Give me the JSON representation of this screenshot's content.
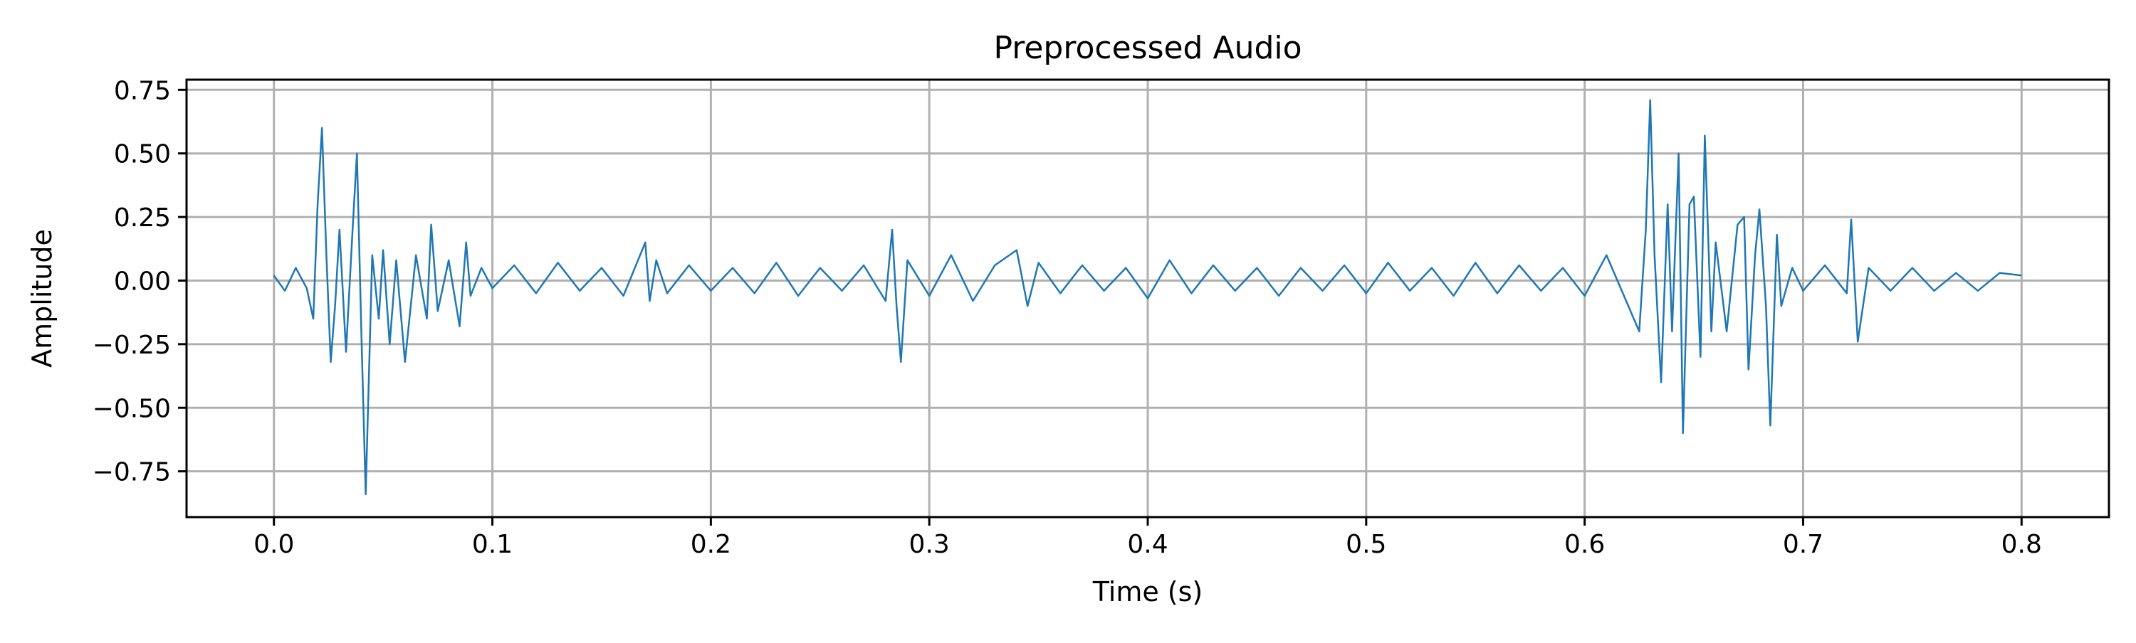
{
  "chart_data": {
    "type": "line",
    "title": "Preprocessed Audio",
    "xlabel": "Time (s)",
    "ylabel": "Amplitude",
    "xlim": [
      -0.04,
      0.84
    ],
    "ylim": [
      -0.93,
      0.79
    ],
    "xticks": [
      0.0,
      0.1,
      0.2,
      0.3,
      0.4,
      0.5,
      0.6,
      0.7,
      0.8
    ],
    "xtick_labels": [
      "0.0",
      "0.1",
      "0.2",
      "0.3",
      "0.4",
      "0.5",
      "0.6",
      "0.7",
      "0.8"
    ],
    "yticks": [
      0.75,
      0.5,
      0.25,
      0.0,
      -0.25,
      -0.5,
      -0.75
    ],
    "ytick_labels": [
      "0.75",
      "0.50",
      "0.25",
      "0.00",
      "−0.25",
      "−0.50",
      "−0.75"
    ],
    "grid": true,
    "legend": "none",
    "colors": {
      "series": "#1f77b4",
      "grid": "#b0b0b0",
      "axes": "#000000"
    },
    "series": [
      {
        "x": [
          0.0,
          0.005,
          0.01,
          0.015,
          0.018,
          0.02,
          0.022,
          0.024,
          0.026,
          0.028,
          0.03,
          0.033,
          0.036,
          0.038,
          0.04,
          0.042,
          0.045,
          0.048,
          0.05,
          0.053,
          0.056,
          0.06,
          0.065,
          0.07,
          0.072,
          0.075,
          0.08,
          0.085,
          0.088,
          0.09,
          0.095,
          0.1,
          0.11,
          0.12,
          0.13,
          0.14,
          0.15,
          0.16,
          0.17,
          0.172,
          0.175,
          0.18,
          0.19,
          0.2,
          0.21,
          0.22,
          0.23,
          0.24,
          0.25,
          0.26,
          0.27,
          0.28,
          0.283,
          0.285,
          0.287,
          0.29,
          0.3,
          0.31,
          0.32,
          0.33,
          0.34,
          0.345,
          0.35,
          0.36,
          0.37,
          0.38,
          0.39,
          0.4,
          0.41,
          0.42,
          0.43,
          0.44,
          0.45,
          0.46,
          0.47,
          0.48,
          0.49,
          0.5,
          0.51,
          0.52,
          0.53,
          0.54,
          0.55,
          0.56,
          0.57,
          0.58,
          0.59,
          0.6,
          0.61,
          0.62,
          0.625,
          0.628,
          0.63,
          0.632,
          0.635,
          0.638,
          0.64,
          0.643,
          0.645,
          0.648,
          0.65,
          0.653,
          0.655,
          0.658,
          0.66,
          0.665,
          0.67,
          0.673,
          0.675,
          0.678,
          0.68,
          0.683,
          0.685,
          0.688,
          0.69,
          0.695,
          0.7,
          0.71,
          0.72,
          0.722,
          0.725,
          0.73,
          0.74,
          0.75,
          0.76,
          0.77,
          0.78,
          0.79,
          0.8
        ],
        "y": [
          0.02,
          -0.04,
          0.05,
          -0.03,
          -0.15,
          0.3,
          0.6,
          0.1,
          -0.32,
          -0.1,
          0.2,
          -0.28,
          0.2,
          0.5,
          -0.2,
          -0.84,
          0.1,
          -0.15,
          0.12,
          -0.25,
          0.08,
          -0.32,
          0.1,
          -0.15,
          0.22,
          -0.12,
          0.08,
          -0.18,
          0.15,
          -0.06,
          0.05,
          -0.03,
          0.06,
          -0.05,
          0.07,
          -0.04,
          0.05,
          -0.06,
          0.15,
          -0.08,
          0.08,
          -0.05,
          0.06,
          -0.04,
          0.05,
          -0.05,
          0.07,
          -0.06,
          0.05,
          -0.04,
          0.06,
          -0.08,
          0.2,
          -0.1,
          -0.32,
          0.08,
          -0.06,
          0.1,
          -0.08,
          0.06,
          0.12,
          -0.1,
          0.07,
          -0.05,
          0.06,
          -0.04,
          0.05,
          -0.07,
          0.08,
          -0.05,
          0.06,
          -0.04,
          0.05,
          -0.06,
          0.05,
          -0.04,
          0.06,
          -0.05,
          0.07,
          -0.04,
          0.05,
          -0.06,
          0.07,
          -0.05,
          0.06,
          -0.04,
          0.05,
          -0.06,
          0.1,
          -0.1,
          -0.2,
          0.2,
          0.71,
          0.1,
          -0.4,
          0.3,
          -0.2,
          0.5,
          -0.6,
          0.3,
          0.33,
          -0.3,
          0.57,
          -0.2,
          0.15,
          -0.2,
          0.22,
          0.25,
          -0.35,
          0.1,
          0.28,
          -0.1,
          -0.57,
          0.18,
          -0.1,
          0.05,
          -0.04,
          0.06,
          -0.05,
          0.24,
          -0.24,
          0.05,
          -0.04,
          0.05,
          -0.04,
          0.03,
          -0.04,
          0.03,
          0.02
        ]
      }
    ]
  }
}
